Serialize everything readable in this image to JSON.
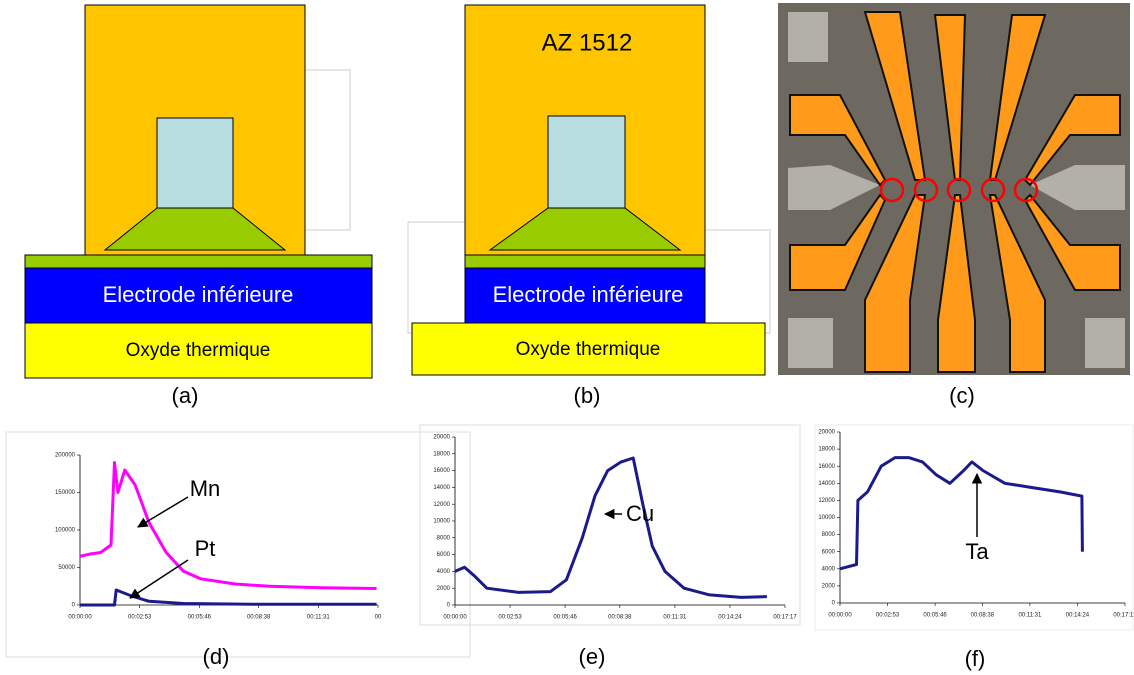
{
  "figure": {
    "panel_labels": [
      "(a)",
      "(b)",
      "(c)",
      "(d)",
      "(e)",
      "(f)"
    ],
    "diagram_a": {
      "electrode": "Electrode inférieure",
      "oxide": "Oxyde thermique"
    },
    "diagram_b": {
      "resist": "AZ 1512",
      "electrode": "Electrode inférieure",
      "oxide": "Oxyde thermique"
    }
  },
  "chart_data": [
    {
      "type": "line",
      "series": [
        {
          "name": "Mn",
          "color": "#ff00ff",
          "x": [
            0,
            30,
            60,
            90,
            100,
            110,
            130,
            160,
            200,
            250,
            300,
            350,
            450,
            550,
            700,
            860
          ],
          "values": [
            65000,
            68000,
            70000,
            80000,
            190000,
            150000,
            180000,
            160000,
            110000,
            70000,
            45000,
            35000,
            28000,
            25000,
            23000,
            22000
          ]
        },
        {
          "name": "Pt",
          "color": "#1a1a8c",
          "x": [
            0,
            100,
            105,
            150,
            200,
            300,
            500,
            860
          ],
          "values": [
            0,
            0,
            20000,
            12000,
            5000,
            2000,
            1000,
            1000
          ]
        }
      ],
      "xlim": [
        0,
        864
      ],
      "xticks": [
        {
          "value": 0,
          "label": "00:00:00"
        },
        {
          "value": 173,
          "label": "00:02:53"
        },
        {
          "value": 346,
          "label": "00:05:46"
        },
        {
          "value": 518,
          "label": "00:08:38"
        },
        {
          "value": 691,
          "label": "00:11:31"
        },
        {
          "value": 864,
          "label": "00"
        }
      ],
      "ylim": [
        0,
        200000
      ],
      "yticks": [
        0,
        50000,
        100000,
        150000,
        200000
      ]
    },
    {
      "type": "line",
      "series": [
        {
          "name": "Cu",
          "color": "#1a1a8c",
          "x": [
            0,
            30,
            60,
            100,
            200,
            300,
            350,
            400,
            440,
            480,
            520,
            560,
            590,
            620,
            660,
            720,
            800,
            900,
            980
          ],
          "values": [
            4000,
            4500,
            3500,
            2000,
            1500,
            1600,
            3000,
            8000,
            13000,
            16000,
            17000,
            17500,
            12000,
            7000,
            4000,
            2000,
            1200,
            900,
            1000
          ]
        }
      ],
      "xlim": [
        0,
        1037
      ],
      "xticks": [
        {
          "value": 0,
          "label": "00:00:00"
        },
        {
          "value": 173,
          "label": "00:02:53"
        },
        {
          "value": 346,
          "label": "00:05:46"
        },
        {
          "value": 518,
          "label": "00:08:38"
        },
        {
          "value": 691,
          "label": "00:11:31"
        },
        {
          "value": 864,
          "label": "00:14:24"
        },
        {
          "value": 1037,
          "label": "00:17:17"
        }
      ],
      "ylim": [
        0,
        20000
      ],
      "yticks": [
        0,
        2000,
        4000,
        6000,
        8000,
        10000,
        12000,
        14000,
        16000,
        18000,
        20000
      ]
    },
    {
      "type": "line",
      "series": [
        {
          "name": "Ta",
          "color": "#1a1a8c",
          "x": [
            0,
            60,
            65,
            100,
            150,
            200,
            250,
            300,
            350,
            400,
            450,
            480,
            520,
            600,
            700,
            800,
            880,
            882
          ],
          "values": [
            4000,
            4500,
            12000,
            13000,
            16000,
            17000,
            17000,
            16500,
            15000,
            14000,
            15500,
            16500,
            15500,
            14000,
            13500,
            13000,
            12500,
            6000
          ]
        }
      ],
      "xlim": [
        0,
        1037
      ],
      "xticks": [
        {
          "value": 0,
          "label": "00:00:00"
        },
        {
          "value": 173,
          "label": "00:02:53"
        },
        {
          "value": 346,
          "label": "00:05:46"
        },
        {
          "value": 518,
          "label": "00:08:38"
        },
        {
          "value": 691,
          "label": "00:11:31"
        },
        {
          "value": 864,
          "label": "00:14:24"
        },
        {
          "value": 1037,
          "label": "00:17:17"
        }
      ],
      "ylim": [
        0,
        20000
      ],
      "yticks": [
        0,
        2000,
        4000,
        6000,
        8000,
        10000,
        12000,
        14000,
        16000,
        18000,
        20000
      ]
    }
  ]
}
